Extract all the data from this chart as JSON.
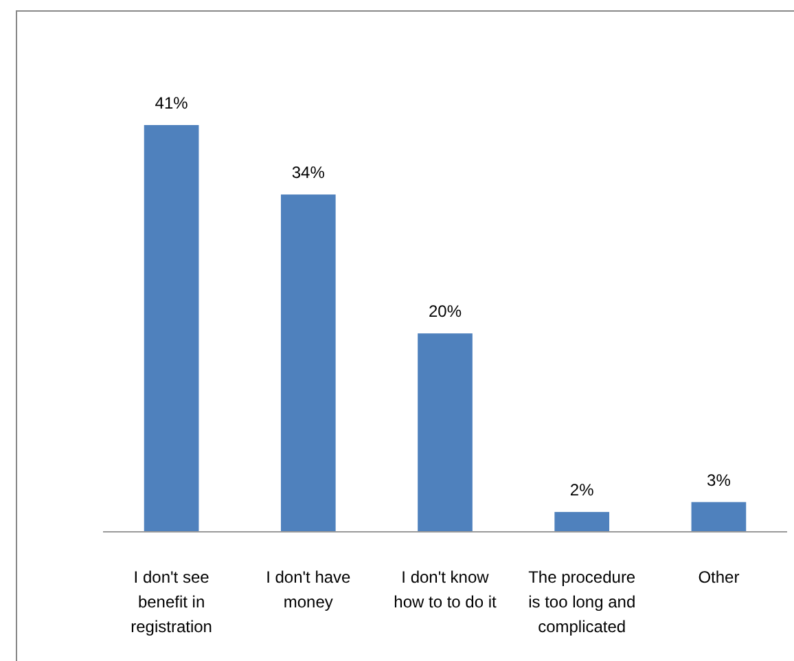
{
  "chart_data": {
    "type": "bar",
    "categories": [
      "I don't see benefit in registration",
      "I don't have money",
      "I don't know how to to do it",
      "The procedure is too long and complicated",
      "Other"
    ],
    "values": [
      41,
      34,
      20,
      2,
      3
    ],
    "color": "#4f81bd",
    "data_labels": true,
    "value_labels": [
      "41%",
      "34%",
      "20%",
      "2%",
      "3%"
    ]
  }
}
